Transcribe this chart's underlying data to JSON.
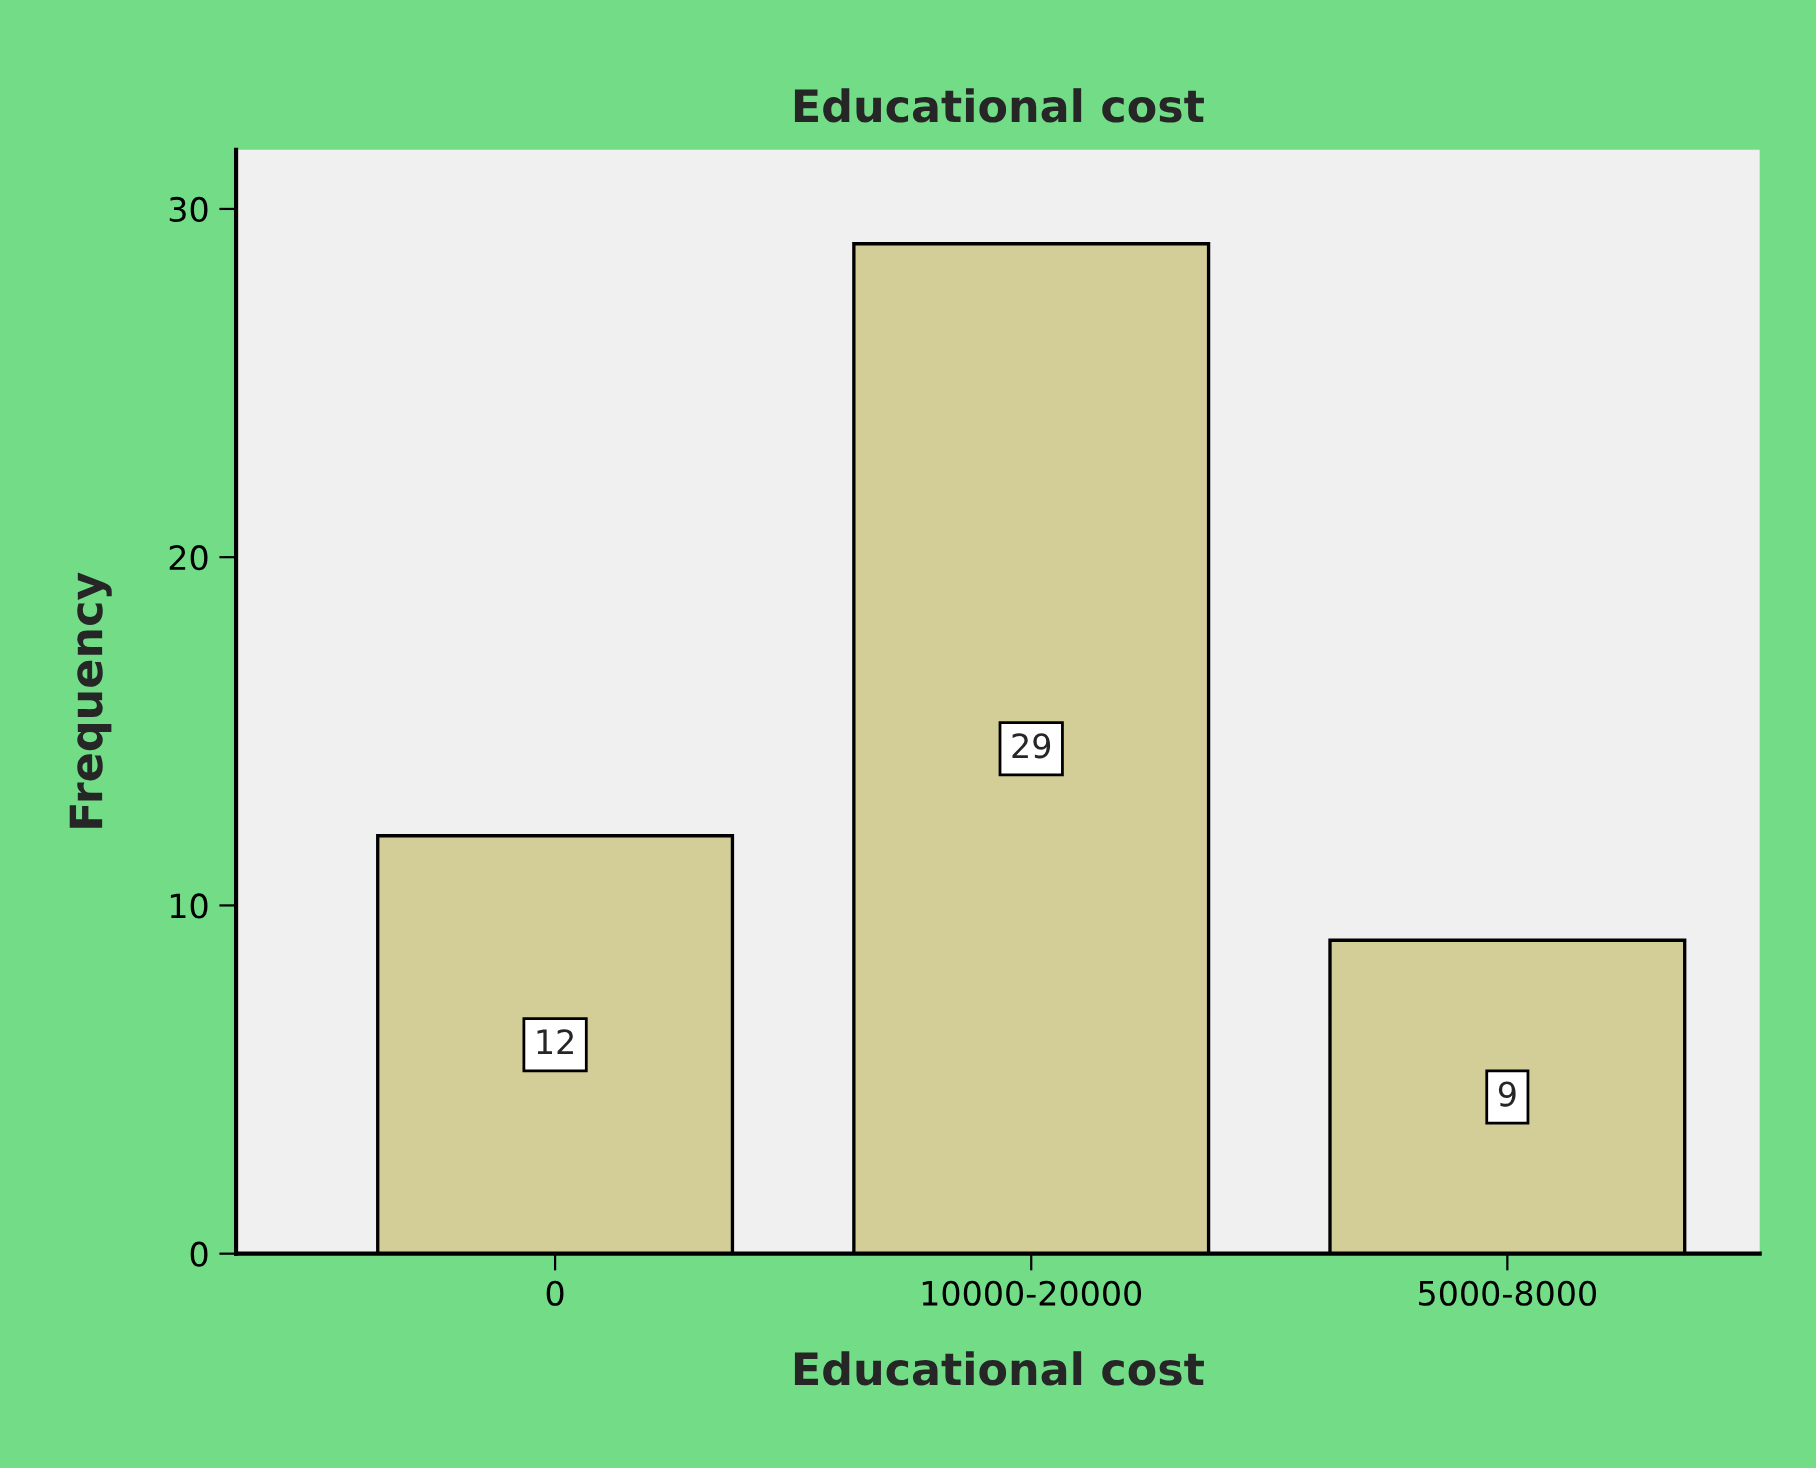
{
  "chart_data": {
    "type": "bar",
    "title": "Educational cost",
    "xlabel": "Educational cost",
    "ylabel": "Frequency",
    "categories": [
      "0",
      "10000-20000",
      "5000-8000"
    ],
    "values": [
      12,
      29,
      9
    ],
    "color": "#d3ce97",
    "ylim": [
      0,
      31.7
    ],
    "yticks": [
      0,
      10,
      20,
      30
    ],
    "data_labels": true,
    "grid": false,
    "legend": false
  }
}
